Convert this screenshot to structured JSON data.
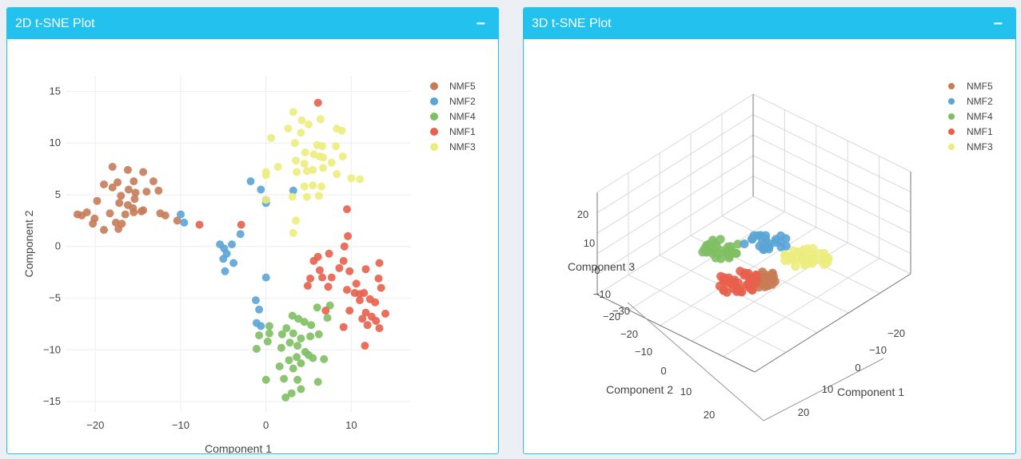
{
  "panels": {
    "left": {
      "title": "2D t-SNE Plot",
      "collapse_label": "−"
    },
    "right": {
      "title": "3D t-SNE Plot",
      "collapse_label": "−"
    }
  },
  "chart_data": [
    {
      "type": "scatter",
      "xlabel": "Component 1",
      "ylabel": "Component 2",
      "xlim": [
        -23.5,
        17
      ],
      "ylim": [
        -16,
        16.5
      ],
      "xticks": [
        -20,
        -10,
        0,
        10
      ],
      "yticks": [
        -15,
        -10,
        -5,
        0,
        5,
        10,
        15
      ],
      "grid": true,
      "legend_position": "top-right",
      "series": [
        {
          "name": "NMF5",
          "color": "#c77c56",
          "points": [
            [
              -18,
              7.7
            ],
            [
              -16.2,
              7.4
            ],
            [
              -14.4,
              7.2
            ],
            [
              -19.0,
              6.0
            ],
            [
              -17.4,
              6.2
            ],
            [
              -15.5,
              6.3
            ],
            [
              -13.2,
              6.3
            ],
            [
              -18.0,
              5.7
            ],
            [
              -16.1,
              5.5
            ],
            [
              -15.3,
              5.2
            ],
            [
              -14.0,
              5.3
            ],
            [
              -12.6,
              5.4
            ],
            [
              -17.0,
              4.9
            ],
            [
              -15.4,
              4.6
            ],
            [
              -19.8,
              4.4
            ],
            [
              -17.2,
              4.2
            ],
            [
              -16.2,
              4.0
            ],
            [
              -15.6,
              3.7
            ],
            [
              -14.4,
              3.5
            ],
            [
              -21.0,
              3.3
            ],
            [
              -18.3,
              3.2
            ],
            [
              -16.5,
              3.1
            ],
            [
              -15.5,
              3.3
            ],
            [
              -14.6,
              3.4
            ],
            [
              -21.6,
              3.0
            ],
            [
              -22.1,
              3.1
            ],
            [
              -20.1,
              2.7
            ],
            [
              -17.6,
              2.3
            ],
            [
              -16.9,
              2.2
            ],
            [
              -20.3,
              2.2
            ],
            [
              -17.3,
              1.7
            ],
            [
              -19.0,
              1.6
            ],
            [
              -12.4,
              3.2
            ],
            [
              -11.8,
              3.0
            ],
            [
              -10.4,
              2.5
            ]
          ]
        },
        {
          "name": "NMF2",
          "color": "#5aa4d6",
          "points": [
            [
              -1.8,
              6.3
            ],
            [
              -0.6,
              5.5
            ],
            [
              0.0,
              4.5
            ],
            [
              0.0,
              4.2
            ],
            [
              3.2,
              5.4
            ],
            [
              -10.0,
              3.1
            ],
            [
              -9.6,
              2.3
            ],
            [
              -3.0,
              1.2
            ],
            [
              -4.0,
              0.2
            ],
            [
              -5.4,
              0.2
            ],
            [
              -4.9,
              -0.2
            ],
            [
              -4.6,
              -0.7
            ],
            [
              -5.0,
              -1.2
            ],
            [
              -3.8,
              -1.6
            ],
            [
              -4.8,
              -2.4
            ],
            [
              0.0,
              -3.0
            ],
            [
              -1.2,
              -5.2
            ],
            [
              -0.8,
              -6.1
            ],
            [
              -1.1,
              -7.4
            ],
            [
              -0.6,
              -7.7
            ]
          ]
        },
        {
          "name": "NMF4",
          "color": "#7fbf63",
          "points": [
            [
              3.1,
              -6.7
            ],
            [
              6.0,
              -5.9
            ],
            [
              7.5,
              -5.7
            ],
            [
              3.8,
              -7.0
            ],
            [
              7.2,
              -6.9
            ],
            [
              4.5,
              -7.3
            ],
            [
              0.4,
              -7.7
            ],
            [
              2.4,
              -7.9
            ],
            [
              5.3,
              -7.6
            ],
            [
              0.4,
              -8.4
            ],
            [
              1.9,
              -8.5
            ],
            [
              3.2,
              -8.4
            ],
            [
              -0.8,
              -8.6
            ],
            [
              6.2,
              -8.5
            ],
            [
              4.1,
              -8.9
            ],
            [
              5.2,
              -8.7
            ],
            [
              0.2,
              -9.2
            ],
            [
              2.8,
              -9.3
            ],
            [
              3.7,
              -9.6
            ],
            [
              -1.1,
              -9.9
            ],
            [
              1.8,
              -9.8
            ],
            [
              4.6,
              -10.2
            ],
            [
              3.6,
              -10.7
            ],
            [
              5.0,
              -10.5
            ],
            [
              5.5,
              -10.8
            ],
            [
              6.8,
              -10.9
            ],
            [
              2.7,
              -11.0
            ],
            [
              4.1,
              -11.3
            ],
            [
              1.6,
              -11.6
            ],
            [
              3.2,
              -11.8
            ],
            [
              0.0,
              -12.9
            ],
            [
              2.1,
              -12.8
            ],
            [
              3.7,
              -12.9
            ],
            [
              6.1,
              -13.1
            ],
            [
              4.1,
              -13.8
            ],
            [
              3.0,
              -14.2
            ],
            [
              2.3,
              -14.6
            ]
          ]
        },
        {
          "name": "NMF1",
          "color": "#e8604c",
          "points": [
            [
              6.1,
              13.9
            ],
            [
              9.5,
              3.6
            ],
            [
              -7.8,
              2.1
            ],
            [
              -2.9,
              2.1
            ],
            [
              9.6,
              1.0
            ],
            [
              9.2,
              0.0
            ],
            [
              7.4,
              -0.7
            ],
            [
              6.1,
              -1.0
            ],
            [
              5.6,
              -1.4
            ],
            [
              9.1,
              -1.4
            ],
            [
              13.3,
              -1.6
            ],
            [
              11.7,
              -2.2
            ],
            [
              6.3,
              -2.3
            ],
            [
              8.6,
              -2.1
            ],
            [
              9.8,
              -2.4
            ],
            [
              6.6,
              -3.0
            ],
            [
              7.7,
              -3.0
            ],
            [
              5.2,
              -3.1
            ],
            [
              13.2,
              -3.1
            ],
            [
              10.6,
              -3.6
            ],
            [
              4.9,
              -3.8
            ],
            [
              7.3,
              -3.9
            ],
            [
              9.5,
              -4.2
            ],
            [
              10.4,
              -4.5
            ],
            [
              11.0,
              -4.6
            ],
            [
              11.5,
              -4.5
            ],
            [
              13.5,
              -4.0
            ],
            [
              11.0,
              -5.2
            ],
            [
              12.2,
              -5.1
            ],
            [
              12.8,
              -5.4
            ],
            [
              9.8,
              -6.2
            ],
            [
              7.0,
              -6.2
            ],
            [
              11.7,
              -6.4
            ],
            [
              14.0,
              -6.5
            ],
            [
              12.4,
              -6.8
            ],
            [
              11.3,
              -7.0
            ],
            [
              12.9,
              -7.2
            ],
            [
              9.1,
              -7.8
            ],
            [
              11.9,
              -7.6
            ],
            [
              13.3,
              -7.9
            ],
            [
              11.6,
              -9.6
            ]
          ]
        },
        {
          "name": "NMF3",
          "color": "#ecec7e",
          "points": [
            [
              3.2,
              13.0
            ],
            [
              4.2,
              12.2
            ],
            [
              6.4,
              12.3
            ],
            [
              5.0,
              11.8
            ],
            [
              2.6,
              11.4
            ],
            [
              4.1,
              11.0
            ],
            [
              8.3,
              11.4
            ],
            [
              8.9,
              11.2
            ],
            [
              0.6,
              10.5
            ],
            [
              3.4,
              10.0
            ],
            [
              6.0,
              9.8
            ],
            [
              6.6,
              9.7
            ],
            [
              8.2,
              9.7
            ],
            [
              4.6,
              9.1
            ],
            [
              5.6,
              8.9
            ],
            [
              6.3,
              8.7
            ],
            [
              6.7,
              8.6
            ],
            [
              9.0,
              8.7
            ],
            [
              3.5,
              8.3
            ],
            [
              4.5,
              8.0
            ],
            [
              7.7,
              8.1
            ],
            [
              5.5,
              7.4
            ],
            [
              6.7,
              7.6
            ],
            [
              1.4,
              7.7
            ],
            [
              3.6,
              7.2
            ],
            [
              4.8,
              7.3
            ],
            [
              8.3,
              7.0
            ],
            [
              10.0,
              6.6
            ],
            [
              11.0,
              6.5
            ],
            [
              0.0,
              7.2
            ],
            [
              0.0,
              6.9
            ],
            [
              5.5,
              5.9
            ],
            [
              6.5,
              5.8
            ],
            [
              4.5,
              5.8
            ],
            [
              6.2,
              4.9
            ],
            [
              3.1,
              4.8
            ],
            [
              4.8,
              4.8
            ],
            [
              0.0,
              4.5
            ],
            [
              3.5,
              2.5
            ],
            [
              3.2,
              1.3
            ]
          ]
        }
      ]
    },
    {
      "type": "scatter",
      "xlabel": "Component 1",
      "ylabel": "Component 2",
      "zlabel": "Component 3",
      "x_ticks": [
        "−20",
        "−10",
        "0",
        "10",
        "20"
      ],
      "y_ticks": [
        "−30",
        "−20",
        "−10",
        "0",
        "10",
        "20"
      ],
      "z_ticks": [
        "−20",
        "−10",
        "0",
        "10",
        "20"
      ],
      "legend_position": "top-right",
      "series": [
        {
          "name": "NMF5",
          "color": "#c77c56"
        },
        {
          "name": "NMF2",
          "color": "#5aa4d6"
        },
        {
          "name": "NMF4",
          "color": "#7fbf63"
        },
        {
          "name": "NMF1",
          "color": "#e8604c"
        },
        {
          "name": "NMF3",
          "color": "#ecec7e"
        }
      ]
    }
  ]
}
